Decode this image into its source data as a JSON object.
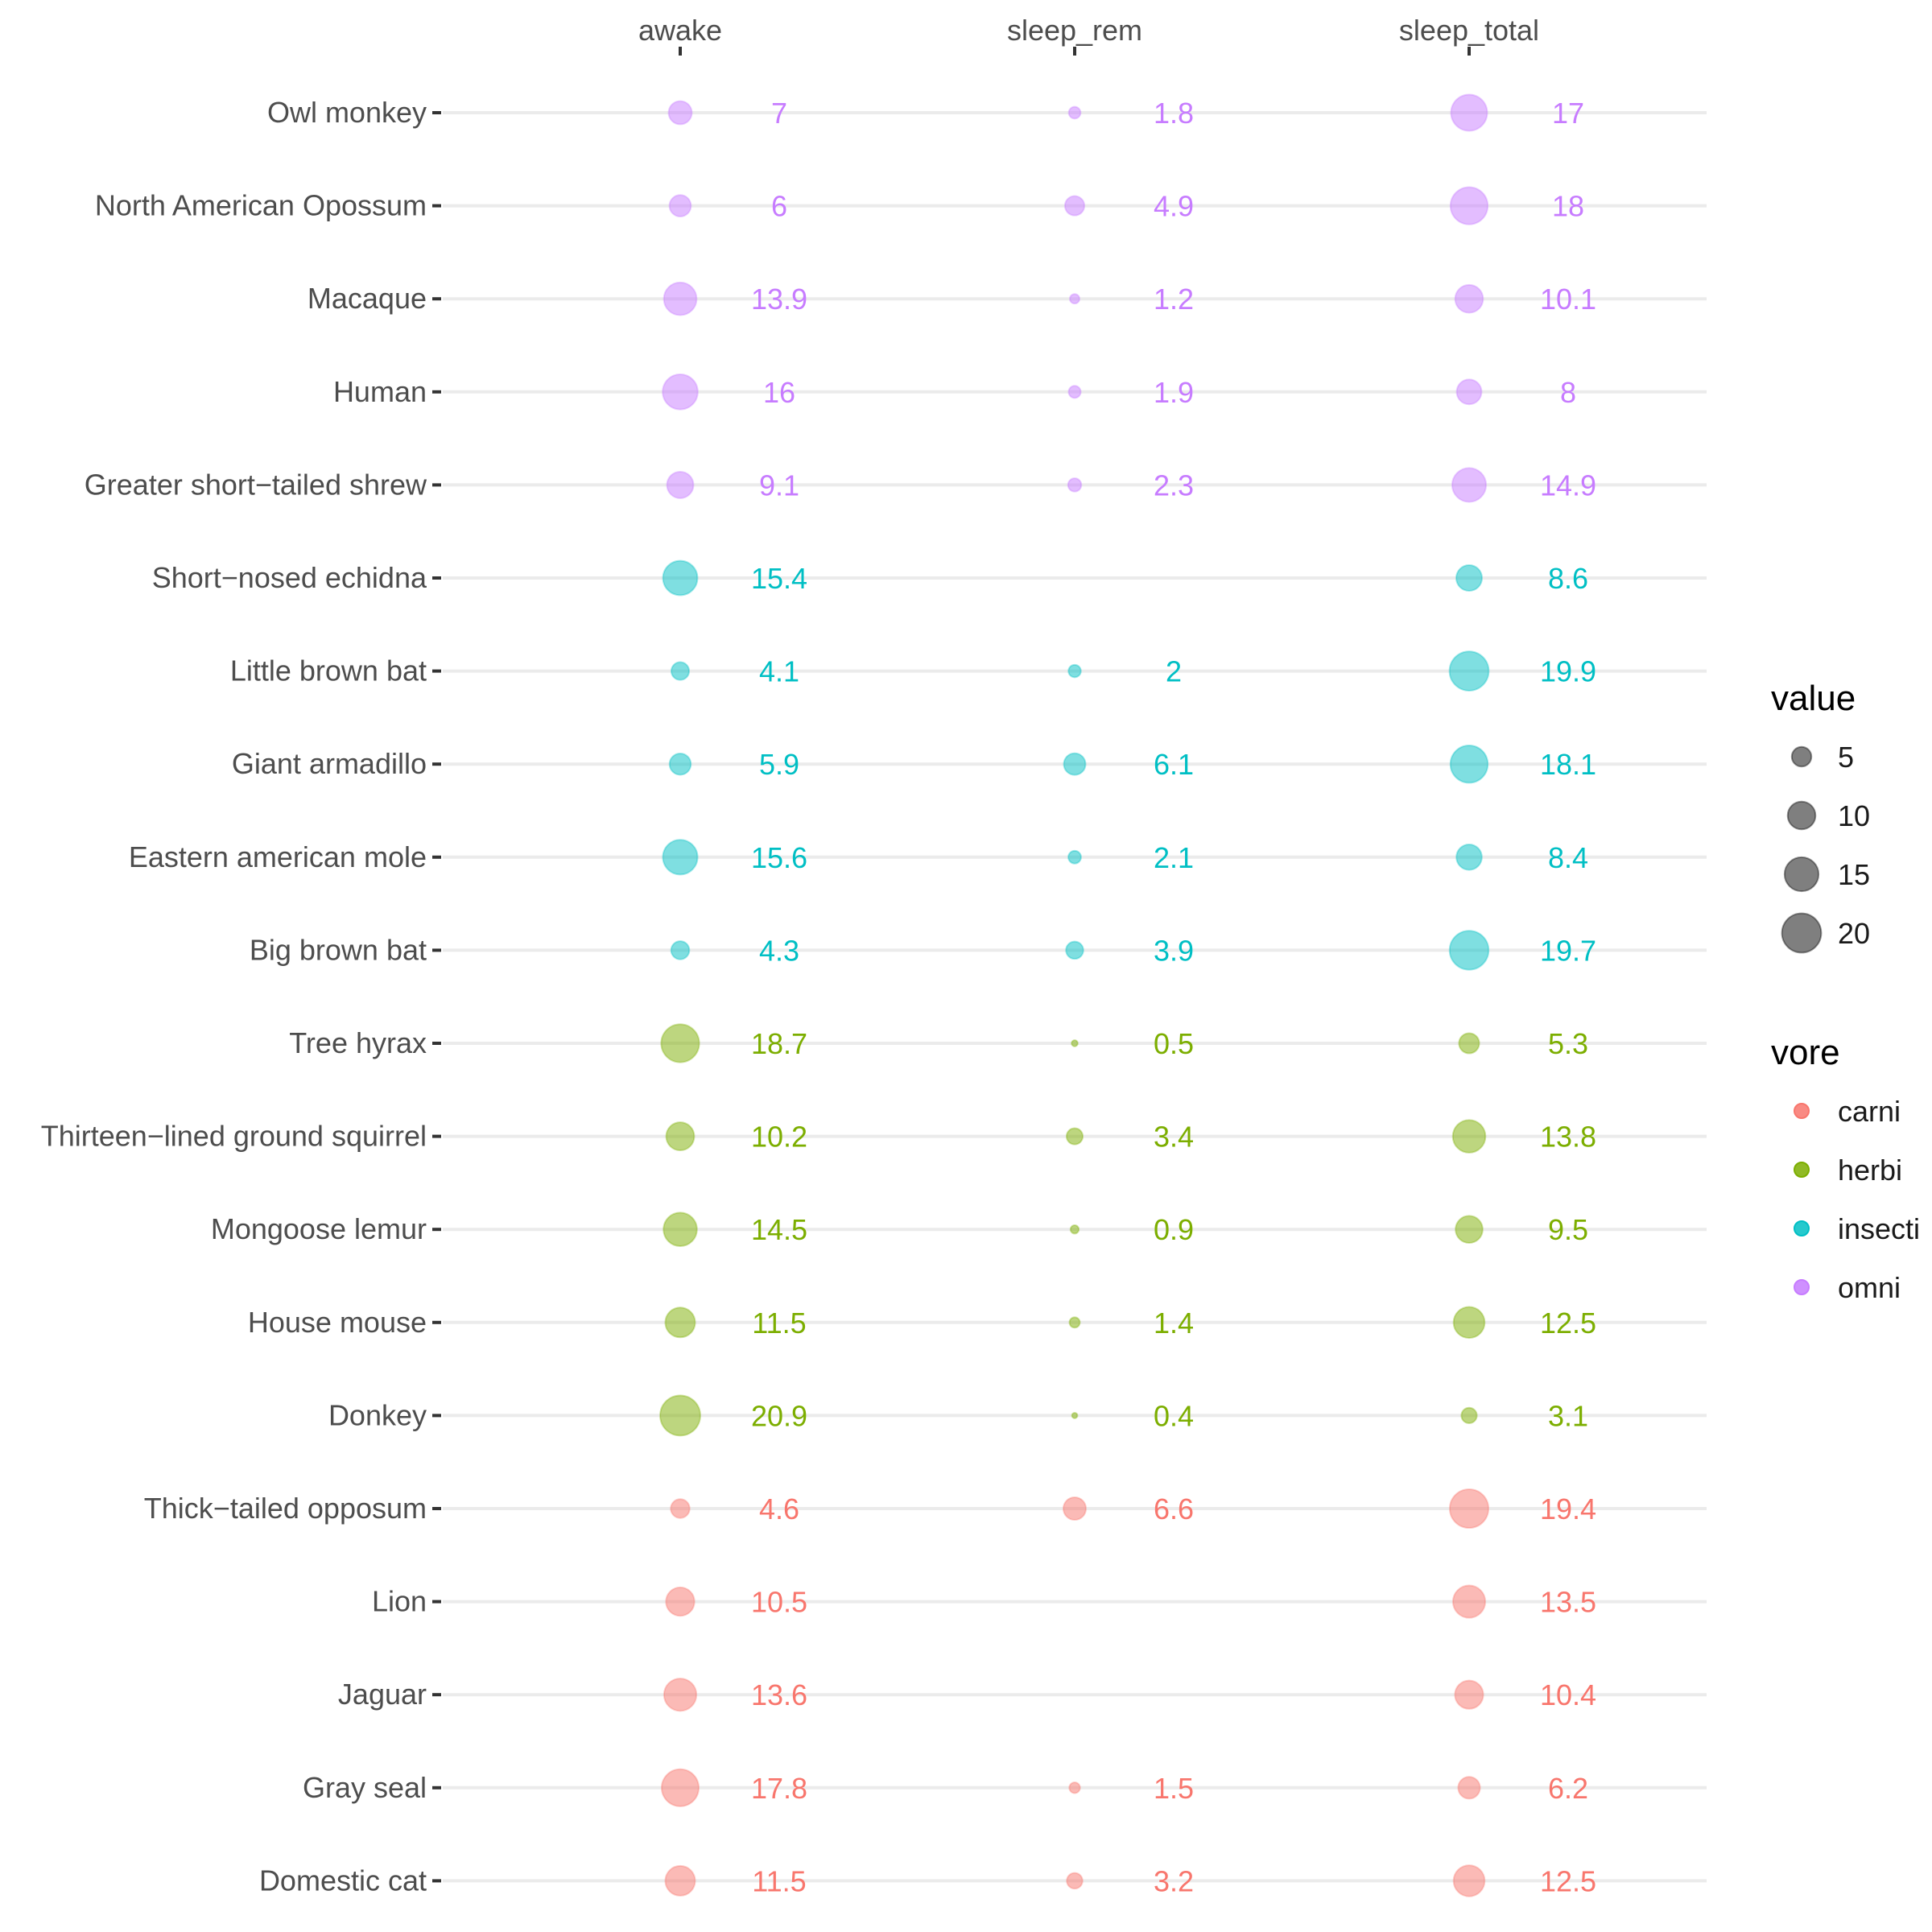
{
  "chart_data": {
    "type": "scatter",
    "columns": [
      "awake",
      "sleep_rem",
      "sleep_total"
    ],
    "rows": [
      {
        "name": "Owl monkey",
        "vore": "omni",
        "values": [
          7,
          1.8,
          17
        ],
        "labels": [
          "7",
          "1.8",
          "17"
        ]
      },
      {
        "name": "North American Opossum",
        "vore": "omni",
        "values": [
          6,
          4.9,
          18
        ],
        "labels": [
          "6",
          "4.9",
          "18"
        ]
      },
      {
        "name": "Macaque",
        "vore": "omni",
        "values": [
          13.9,
          1.2,
          10.1
        ],
        "labels": [
          "13.9",
          "1.2",
          "10.1"
        ]
      },
      {
        "name": "Human",
        "vore": "omni",
        "values": [
          16,
          1.9,
          8
        ],
        "labels": [
          "16",
          "1.9",
          "8"
        ]
      },
      {
        "name": "Greater short−tailed shrew",
        "vore": "omni",
        "values": [
          9.1,
          2.3,
          14.9
        ],
        "labels": [
          "9.1",
          "2.3",
          "14.9"
        ]
      },
      {
        "name": "Short−nosed echidna",
        "vore": "insecti",
        "values": [
          15.4,
          null,
          8.6
        ],
        "labels": [
          "15.4",
          "",
          "8.6"
        ]
      },
      {
        "name": "Little brown bat",
        "vore": "insecti",
        "values": [
          4.1,
          2,
          19.9
        ],
        "labels": [
          "4.1",
          "2",
          "19.9"
        ]
      },
      {
        "name": "Giant armadillo",
        "vore": "insecti",
        "values": [
          5.9,
          6.1,
          18.1
        ],
        "labels": [
          "5.9",
          "6.1",
          "18.1"
        ]
      },
      {
        "name": "Eastern american mole",
        "vore": "insecti",
        "values": [
          15.6,
          2.1,
          8.4
        ],
        "labels": [
          "15.6",
          "2.1",
          "8.4"
        ]
      },
      {
        "name": "Big brown bat",
        "vore": "insecti",
        "values": [
          4.3,
          3.9,
          19.7
        ],
        "labels": [
          "4.3",
          "3.9",
          "19.7"
        ]
      },
      {
        "name": "Tree hyrax",
        "vore": "herbi",
        "values": [
          18.7,
          0.5,
          5.3
        ],
        "labels": [
          "18.7",
          "0.5",
          "5.3"
        ]
      },
      {
        "name": "Thirteen−lined ground squirrel",
        "vore": "herbi",
        "values": [
          10.2,
          3.4,
          13.8
        ],
        "labels": [
          "10.2",
          "3.4",
          "13.8"
        ]
      },
      {
        "name": "Mongoose lemur",
        "vore": "herbi",
        "values": [
          14.5,
          0.9,
          9.5
        ],
        "labels": [
          "14.5",
          "0.9",
          "9.5"
        ]
      },
      {
        "name": "House mouse",
        "vore": "herbi",
        "values": [
          11.5,
          1.4,
          12.5
        ],
        "labels": [
          "11.5",
          "1.4",
          "12.5"
        ]
      },
      {
        "name": "Donkey",
        "vore": "herbi",
        "values": [
          20.9,
          0.4,
          3.1
        ],
        "labels": [
          "20.9",
          "0.4",
          "3.1"
        ]
      },
      {
        "name": "Thick−tailed opposum",
        "vore": "carni",
        "values": [
          4.6,
          6.6,
          19.4
        ],
        "labels": [
          "4.6",
          "6.6",
          "19.4"
        ]
      },
      {
        "name": "Lion",
        "vore": "carni",
        "values": [
          10.5,
          null,
          13.5
        ],
        "labels": [
          "10.5",
          "",
          "13.5"
        ]
      },
      {
        "name": "Jaguar",
        "vore": "carni",
        "values": [
          13.6,
          null,
          10.4
        ],
        "labels": [
          "13.6",
          "",
          "10.4"
        ]
      },
      {
        "name": "Gray seal",
        "vore": "carni",
        "values": [
          17.8,
          1.5,
          6.2
        ],
        "labels": [
          "17.8",
          "1.5",
          "6.2"
        ]
      },
      {
        "name": "Domestic cat",
        "vore": "carni",
        "values": [
          11.5,
          3.2,
          12.5
        ],
        "labels": [
          "11.5",
          "3.2",
          "12.5"
        ]
      }
    ],
    "vore_colors": {
      "carni": "#F8766D",
      "herbi": "#7CAE00",
      "insecti": "#00BFC4",
      "omni": "#C77CFF"
    },
    "legend": {
      "size_title": "value",
      "size_breaks": [
        5,
        10,
        15,
        20
      ],
      "size_labels": [
        "5",
        "10",
        "15",
        "20"
      ],
      "color_title": "vore",
      "color_items": [
        "carni",
        "herbi",
        "insecti",
        "omni"
      ]
    },
    "legend_position": "right",
    "grid": "horizontal major only",
    "x_axis_position": "top"
  }
}
